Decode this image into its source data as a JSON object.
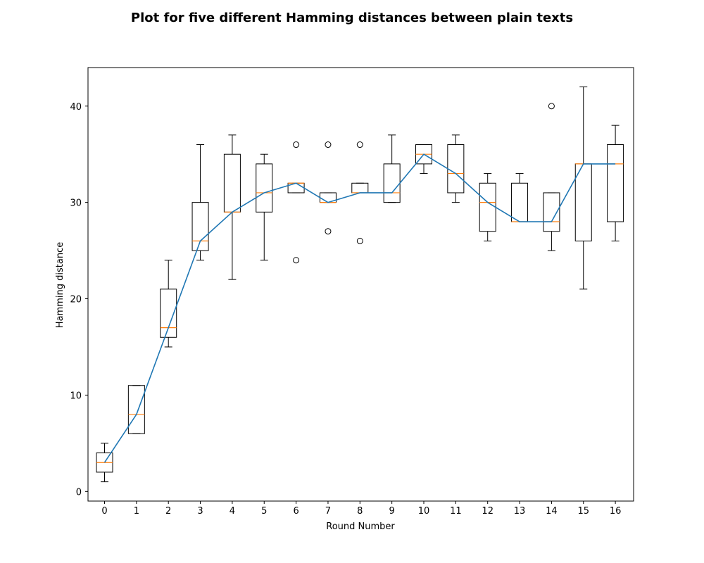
{
  "chart_data": {
    "type": "box",
    "title": "Plot for five different Hamming distances between plain texts",
    "xlabel": "Round Number",
    "ylabel": "Hamming distance",
    "x_ticks": [
      "0",
      "1",
      "2",
      "3",
      "4",
      "5",
      "6",
      "7",
      "8",
      "9",
      "10",
      "11",
      "12",
      "13",
      "14",
      "15",
      "16"
    ],
    "y_ticks": [
      0,
      10,
      20,
      30,
      40
    ],
    "ylim": [
      -1,
      44
    ],
    "grid": false,
    "legend": "none",
    "colors": {
      "box": "#000000",
      "median": "#ff7f0e",
      "line": "#1f77b4"
    },
    "boxes": [
      {
        "round": 0,
        "whisker_low": 1,
        "q1": 2,
        "median": 3,
        "q3": 4,
        "whisker_high": 5,
        "outliers": []
      },
      {
        "round": 1,
        "whisker_low": 6,
        "q1": 6,
        "median": 8,
        "q3": 11,
        "whisker_high": 11,
        "outliers": []
      },
      {
        "round": 2,
        "whisker_low": 15,
        "q1": 16,
        "median": 17,
        "q3": 21,
        "whisker_high": 24,
        "outliers": []
      },
      {
        "round": 3,
        "whisker_low": 24,
        "q1": 25,
        "median": 26,
        "q3": 30,
        "whisker_high": 36,
        "outliers": []
      },
      {
        "round": 4,
        "whisker_low": 22,
        "q1": 29,
        "median": 29,
        "q3": 35,
        "whisker_high": 37,
        "outliers": []
      },
      {
        "round": 5,
        "whisker_low": 24,
        "q1": 29,
        "median": 31,
        "q3": 34,
        "whisker_high": 35,
        "outliers": []
      },
      {
        "round": 6,
        "whisker_low": 31,
        "q1": 31,
        "median": 32,
        "q3": 32,
        "whisker_high": 32,
        "outliers": [
          24,
          36
        ]
      },
      {
        "round": 7,
        "whisker_low": 30,
        "q1": 30,
        "median": 30,
        "q3": 31,
        "whisker_high": 31,
        "outliers": [
          27,
          36
        ]
      },
      {
        "round": 8,
        "whisker_low": 31,
        "q1": 31,
        "median": 31,
        "q3": 32,
        "whisker_high": 32,
        "outliers": [
          26,
          36
        ]
      },
      {
        "round": 9,
        "whisker_low": 30,
        "q1": 30,
        "median": 31,
        "q3": 34,
        "whisker_high": 37,
        "outliers": []
      },
      {
        "round": 10,
        "whisker_low": 33,
        "q1": 34,
        "median": 35,
        "q3": 36,
        "whisker_high": 36,
        "outliers": []
      },
      {
        "round": 11,
        "whisker_low": 30,
        "q1": 31,
        "median": 33,
        "q3": 36,
        "whisker_high": 37,
        "outliers": []
      },
      {
        "round": 12,
        "whisker_low": 26,
        "q1": 27,
        "median": 30,
        "q3": 32,
        "whisker_high": 33,
        "outliers": []
      },
      {
        "round": 13,
        "whisker_low": 28,
        "q1": 28,
        "median": 28,
        "q3": 32,
        "whisker_high": 33,
        "outliers": []
      },
      {
        "round": 14,
        "whisker_low": 25,
        "q1": 27,
        "median": 28,
        "q3": 31,
        "whisker_high": 31,
        "outliers": [
          40
        ]
      },
      {
        "round": 15,
        "whisker_low": 21,
        "q1": 26,
        "median": 34,
        "q3": 34,
        "whisker_high": 42,
        "outliers": []
      },
      {
        "round": 16,
        "whisker_low": 26,
        "q1": 28,
        "median": 34,
        "q3": 36,
        "whisker_high": 38,
        "outliers": []
      }
    ],
    "median_line": [
      3,
      8,
      17,
      26,
      29,
      31,
      32,
      30,
      31,
      31,
      35,
      33,
      30,
      28,
      28,
      34,
      34
    ]
  }
}
